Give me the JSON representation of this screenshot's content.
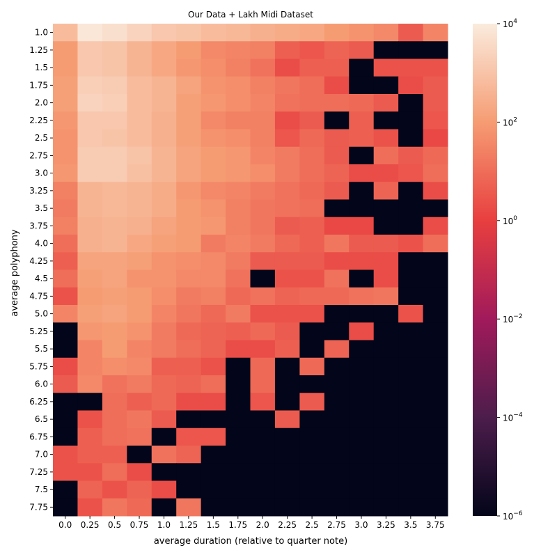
{
  "chart_data": {
    "type": "heatmap",
    "title": "Our Data + Lakh Midi Dataset",
    "xlabel": "average duration (relative to quarter note)",
    "ylabel": "average polyphony",
    "x_categories": [
      "0.0",
      "0.25",
      "0.5",
      "0.75",
      "1.0",
      "1.25",
      "1.5",
      "1.75",
      "2.0",
      "2.25",
      "2.5",
      "2.75",
      "3.0",
      "3.25",
      "3.5",
      "3.75"
    ],
    "y_categories": [
      "1.0",
      "1.25",
      "1.5",
      "1.75",
      "2.0",
      "2.25",
      "2.5",
      "2.75",
      "3.0",
      "3.25",
      "3.5",
      "3.75",
      "4.0",
      "4.25",
      "4.5",
      "4.75",
      "5.0",
      "5.25",
      "5.5",
      "5.75",
      "6.0",
      "6.25",
      "6.5",
      "6.75",
      "7.0",
      "7.25",
      "7.5",
      "7.75"
    ],
    "color_scale": "log",
    "zlim": [
      1e-06,
      10000
    ],
    "colorbar_ticks": [
      {
        "value": 1e-06,
        "label": "10^-6"
      },
      {
        "value": 0.0001,
        "label": "10^-4"
      },
      {
        "value": 0.01,
        "label": "10^-2"
      },
      {
        "value": 1,
        "label": "10^0"
      },
      {
        "value": 100,
        "label": "10^2"
      },
      {
        "value": 10000,
        "label": "10^4"
      }
    ],
    "colorbar_colors": [
      "#03051a",
      "#4c1d4b",
      "#a11a5b",
      "#e83f3f",
      "#f69c73",
      "#faebdd"
    ],
    "log10_values": [
      [
        2.8,
        3.9,
        3.7,
        3.4,
        3.1,
        3.0,
        2.8,
        2.7,
        2.5,
        2.4,
        2.3,
        2.0,
        1.8,
        1.6,
        0.6,
        1.5
      ],
      [
        2.0,
        3.1,
        3.0,
        2.6,
        2.3,
        2.0,
        1.6,
        1.5,
        1.4,
        0.7,
        0.5,
        0.8,
        0.6,
        -6,
        -6,
        -6
      ],
      [
        2.0,
        3.1,
        3.0,
        2.6,
        2.3,
        1.9,
        1.7,
        1.4,
        1.1,
        0.3,
        0.7,
        0.7,
        -6,
        0.4,
        0.4,
        0.4
      ],
      [
        2.1,
        3.3,
        3.2,
        2.8,
        2.6,
        2.2,
        1.8,
        1.7,
        1.4,
        1.2,
        1.0,
        0.3,
        -6,
        -6,
        0.3,
        0.6
      ],
      [
        2.1,
        3.4,
        3.3,
        2.8,
        2.6,
        2.1,
        1.9,
        1.7,
        1.5,
        1.1,
        1.0,
        1.0,
        0.9,
        0.6,
        -6,
        0.6
      ],
      [
        1.9,
        3.1,
        3.1,
        2.8,
        2.5,
        2.1,
        1.6,
        1.4,
        1.4,
        0.3,
        0.6,
        -6,
        0.7,
        -6,
        -6,
        0.5
      ],
      [
        1.8,
        3.1,
        3.0,
        2.8,
        2.5,
        2.1,
        1.8,
        1.7,
        1.4,
        0.5,
        0.9,
        0.6,
        0.7,
        0.4,
        -6,
        0.2
      ],
      [
        1.8,
        3.2,
        3.2,
        3.0,
        2.6,
        2.2,
        2.0,
        1.9,
        1.5,
        1.3,
        1.0,
        0.6,
        -6,
        1.0,
        0.6,
        0.9
      ],
      [
        1.9,
        3.2,
        3.2,
        2.9,
        2.6,
        2.2,
        2.0,
        1.9,
        1.7,
        1.3,
        1.0,
        0.8,
        0.3,
        0.3,
        0.5,
        1.0
      ],
      [
        1.4,
        2.6,
        2.7,
        2.6,
        2.4,
        1.9,
        1.6,
        1.5,
        1.3,
        1.1,
        0.9,
        0.6,
        -6,
        0.8,
        -6,
        0.3
      ],
      [
        1.3,
        2.6,
        2.7,
        2.6,
        2.4,
        2.0,
        1.8,
        1.4,
        1.2,
        1.1,
        1.0,
        -6,
        -6,
        -6,
        -6,
        -6
      ],
      [
        1.4,
        2.5,
        2.6,
        2.5,
        2.2,
        2.0,
        1.9,
        1.4,
        1.2,
        0.6,
        0.7,
        0.2,
        0.2,
        -6,
        -6,
        0.3
      ],
      [
        1.0,
        2.5,
        2.6,
        2.3,
        2.1,
        2.0,
        1.3,
        1.5,
        1.3,
        0.9,
        0.7,
        1.2,
        0.6,
        0.6,
        0.4,
        1.0
      ],
      [
        0.7,
        2.2,
        2.2,
        2.1,
        1.8,
        1.7,
        1.6,
        1.3,
        0.6,
        0.6,
        0.6,
        0.3,
        0.3,
        0.3,
        -6,
        -6
      ],
      [
        1.0,
        2.1,
        2.2,
        1.8,
        1.8,
        1.6,
        1.6,
        1.1,
        -6,
        0.4,
        0.4,
        1.1,
        -6,
        0.3,
        -6,
        -6
      ],
      [
        0.4,
        2.0,
        2.1,
        2.0,
        1.7,
        1.3,
        1.4,
        0.9,
        1.1,
        0.8,
        0.9,
        0.9,
        1.1,
        1.2,
        -6,
        -6
      ],
      [
        1.5,
        2.1,
        2.2,
        2.0,
        1.5,
        1.2,
        0.9,
        1.3,
        0.4,
        0.4,
        0.4,
        -6,
        -6,
        -6,
        0.4,
        -6
      ],
      [
        -6,
        1.9,
        2.0,
        1.8,
        1.3,
        0.9,
        0.8,
        0.7,
        0.9,
        0.6,
        -6,
        -6,
        0.3,
        -6,
        -6,
        -6
      ],
      [
        -6,
        1.5,
        2.0,
        1.5,
        1.3,
        1.0,
        0.8,
        0.3,
        0.3,
        0.7,
        -6,
        0.8,
        -6,
        -6,
        -6,
        -6
      ],
      [
        0.3,
        1.5,
        1.7,
        1.6,
        0.7,
        0.7,
        0.4,
        -6,
        0.9,
        -6,
        0.9,
        -6,
        -6,
        -6,
        -6,
        -6
      ],
      [
        0.6,
        1.6,
        1.1,
        1.3,
        0.9,
        0.8,
        1.0,
        -6,
        0.9,
        -6,
        -6,
        -6,
        -6,
        -6,
        -6,
        -6
      ],
      [
        -6,
        -6,
        1.0,
        0.7,
        0.9,
        0.3,
        0.3,
        -6,
        0.5,
        -6,
        0.6,
        -6,
        -6,
        -6,
        -6,
        -6
      ],
      [
        -6,
        0.4,
        1.0,
        1.2,
        0.6,
        -6,
        -6,
        -6,
        -6,
        0.6,
        -6,
        -6,
        -6,
        -6,
        -6,
        -6
      ],
      [
        -6,
        0.7,
        1.0,
        1.1,
        -6,
        0.5,
        0.5,
        -6,
        -6,
        -6,
        -6,
        -6,
        -6,
        -6,
        -6,
        -6
      ],
      [
        0.4,
        0.7,
        0.7,
        -6,
        1.1,
        0.8,
        -6,
        -6,
        -6,
        -6,
        -6,
        -6,
        -6,
        -6,
        -6,
        -6
      ],
      [
        0.4,
        0.4,
        1.0,
        0.3,
        -6,
        -6,
        -6,
        -6,
        -6,
        -6,
        -6,
        -6,
        -6,
        -6,
        -6,
        -6
      ],
      [
        -6,
        0.8,
        0.4,
        0.8,
        0.3,
        -6,
        -6,
        -6,
        -6,
        -6,
        -6,
        -6,
        -6,
        -6,
        -6,
        -6
      ],
      [
        -6,
        0.4,
        1.2,
        0.9,
        -6,
        1.2,
        -6,
        -6,
        -6,
        -6,
        -6,
        -6,
        -6,
        -6,
        -6,
        -6
      ]
    ]
  }
}
